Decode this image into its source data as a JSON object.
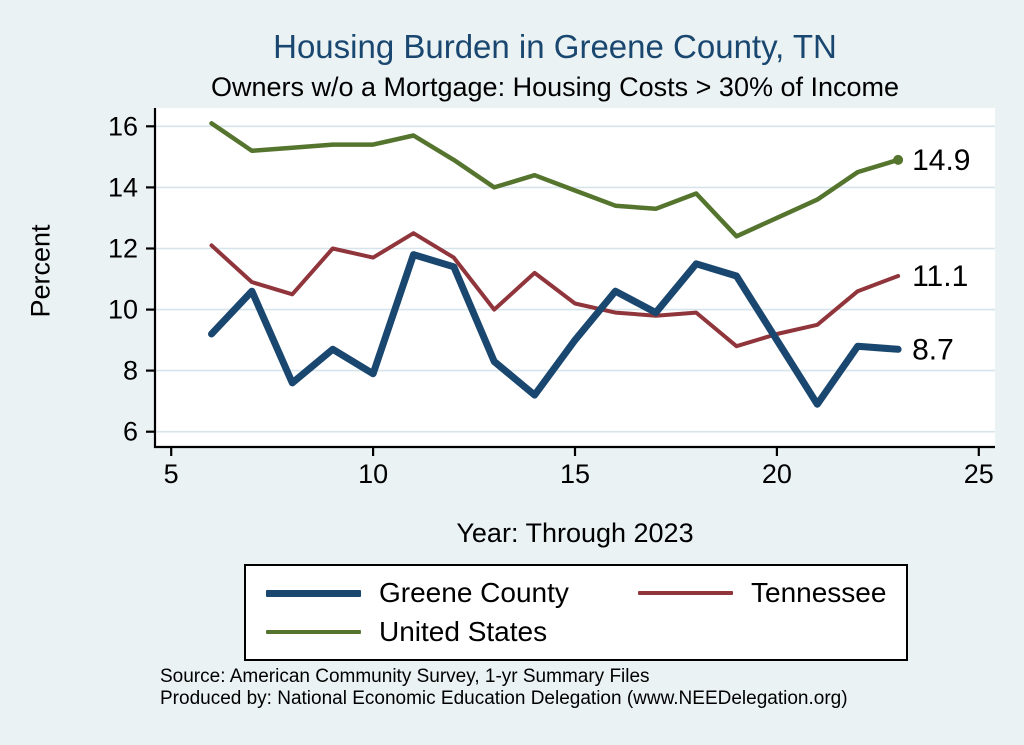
{
  "title": "Housing Burden in Greene County, TN",
  "subtitle": "Owners w/o a Mortgage: Housing Costs > 30% of Income",
  "xlabel": "Year: Through 2023",
  "ylabel": "Percent",
  "source_line1": "Source: American Community Survey, 1-yr Summary Files",
  "source_line2": "Produced by: National Economic Education Delegation (www.NEEDelegation.org)",
  "colors": {
    "background": "#eaf2f3",
    "title": "#1a476f",
    "grid": "#d7e4ec",
    "axis": "#000000",
    "plot_background": "#ffffff"
  },
  "chart_data": {
    "type": "line",
    "title": "Housing Burden in Greene County, TN",
    "subtitle": "Owners w/o a Mortgage: Housing Costs > 30% of Income",
    "xlabel": "Year: Through 2023",
    "ylabel": "Percent",
    "x": [
      6,
      7,
      8,
      9,
      10,
      11,
      12,
      13,
      14,
      15,
      16,
      17,
      18,
      19,
      20,
      21,
      22,
      23
    ],
    "series": [
      {
        "name": "Greene County",
        "color": "#1a476f",
        "width": 7,
        "end_label": "8.7",
        "end_marker": false,
        "values": [
          9.2,
          10.6,
          7.6,
          8.7,
          7.9,
          11.8,
          11.4,
          8.3,
          7.2,
          9.0,
          10.6,
          9.9,
          11.5,
          11.1,
          9.0,
          6.9,
          8.8,
          8.7
        ]
      },
      {
        "name": "Tennessee",
        "color": "#90353b",
        "width": 4,
        "end_label": "11.1",
        "end_marker": false,
        "values": [
          12.1,
          10.9,
          10.5,
          12.0,
          11.7,
          12.5,
          11.7,
          10.0,
          11.2,
          10.2,
          9.9,
          9.8,
          9.9,
          8.8,
          9.2,
          9.5,
          10.6,
          11.1
        ]
      },
      {
        "name": "United States",
        "color": "#55752f",
        "width": 4.5,
        "end_label": "14.9",
        "end_marker": true,
        "values": [
          16.1,
          15.2,
          15.3,
          15.4,
          15.4,
          15.7,
          14.9,
          14.0,
          14.4,
          13.9,
          13.4,
          13.3,
          13.8,
          12.4,
          13.0,
          13.6,
          14.5,
          14.9
        ]
      }
    ],
    "x_ticks": [
      5,
      10,
      15,
      20,
      25
    ],
    "y_ticks": [
      6,
      8,
      10,
      12,
      14,
      16
    ],
    "xlim": [
      4.6,
      25.4
    ],
    "ylim": [
      5.5,
      16.6
    ],
    "grid": true,
    "legend_position": "bottom"
  }
}
